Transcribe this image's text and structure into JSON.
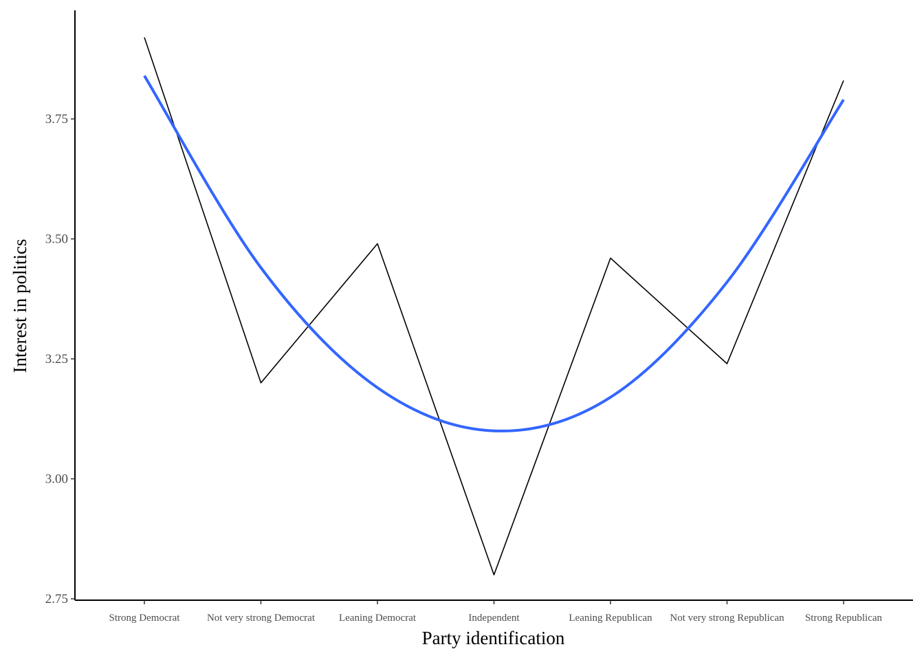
{
  "chart_data": {
    "type": "line",
    "title": "",
    "xlabel": "Party identification",
    "ylabel": "Interest in politics",
    "categories": [
      "Strong Democrat",
      "Not very strong Democrat",
      "Leaning Democrat",
      "Independent",
      "Leaning Republican",
      "Not very strong Republican",
      "Strong Republican"
    ],
    "series": [
      {
        "values": [
          3.92,
          3.2,
          3.49,
          2.8,
          3.46,
          3.24,
          3.83
        ],
        "color": "#000000"
      },
      {
        "values": [
          3.84,
          3.44,
          3.19,
          3.1,
          3.17,
          3.41,
          3.79
        ],
        "color": "#3366ff",
        "smooth": true
      }
    ],
    "ylim": [
      2.75,
      4.0
    ],
    "yticks": [
      2.75,
      3.0,
      3.25,
      3.5,
      3.75
    ],
    "ytick_labels": [
      "2.75",
      "3.00",
      "3.25",
      "3.50",
      "3.75"
    ],
    "grid": false,
    "legend": "none"
  }
}
